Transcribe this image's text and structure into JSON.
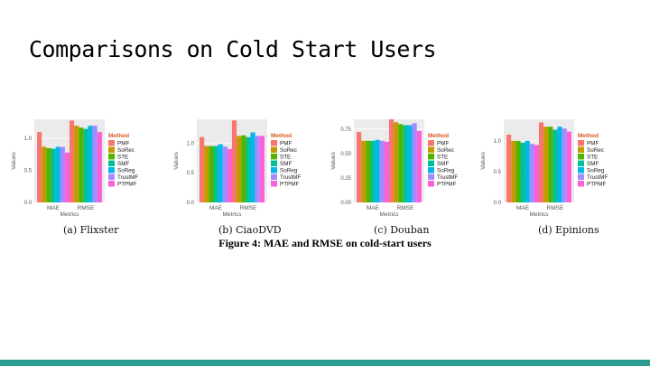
{
  "slide": {
    "title": "Comparisons on Cold Start Users",
    "figure_caption": "Figure 4: MAE and RMSE on cold-start users",
    "bottom_bar_color": "#2a9d8f"
  },
  "chart_common": {
    "legend_title": "Method",
    "methods": [
      "PMF",
      "SoRec",
      "STE",
      "SMF",
      "SoReg",
      "TrustMF",
      "PTPMF"
    ],
    "colors": [
      "#f8766d",
      "#c49a00",
      "#53b400",
      "#00c094",
      "#00b6eb",
      "#a58aff",
      "#fb61d7"
    ],
    "xlabel": "Metrics",
    "ylabel": "Values"
  },
  "chart_data": [
    {
      "type": "bar",
      "caption": "(a) Flixster",
      "categories": [
        "MAE",
        "RMSE"
      ],
      "ylim": [
        0,
        1.3
      ],
      "yticks": [
        0.0,
        0.5,
        1.0
      ],
      "ytick_labels": [
        "0.0",
        "0.5",
        "1.0"
      ],
      "legend": "right",
      "series": [
        {
          "name": "PMF",
          "values": [
            1.1,
            1.28
          ]
        },
        {
          "name": "SoRec",
          "values": [
            0.87,
            1.2
          ]
        },
        {
          "name": "STE",
          "values": [
            0.85,
            1.17
          ]
        },
        {
          "name": "SMF",
          "values": [
            0.84,
            1.15
          ]
        },
        {
          "name": "SoReg",
          "values": [
            0.87,
            1.2
          ]
        },
        {
          "name": "TrustMF",
          "values": [
            0.87,
            1.2
          ]
        },
        {
          "name": "PTPMF",
          "values": [
            0.78,
            1.1
          ]
        }
      ]
    },
    {
      "type": "bar",
      "caption": "(b) CiaoDVD",
      "categories": [
        "MAE",
        "RMSE"
      ],
      "ylim": [
        0,
        1.4
      ],
      "yticks": [
        0.0,
        0.5,
        1.0
      ],
      "ytick_labels": [
        "0.0",
        "0.5",
        "1.0"
      ],
      "legend": "right",
      "series": [
        {
          "name": "PMF",
          "values": [
            1.1,
            1.38
          ]
        },
        {
          "name": "SoRec",
          "values": [
            0.95,
            1.12
          ]
        },
        {
          "name": "STE",
          "values": [
            0.95,
            1.13
          ]
        },
        {
          "name": "SMF",
          "values": [
            0.95,
            1.1
          ]
        },
        {
          "name": "SoReg",
          "values": [
            0.98,
            1.18
          ]
        },
        {
          "name": "TrustMF",
          "values": [
            0.94,
            1.12
          ]
        },
        {
          "name": "PTPMF",
          "values": [
            0.9,
            1.12
          ]
        }
      ]
    },
    {
      "type": "bar",
      "caption": "(c) Douban",
      "categories": [
        "MAE",
        "RMSE"
      ],
      "ylim": [
        0,
        0.85
      ],
      "yticks": [
        0.0,
        0.25,
        0.5,
        0.75
      ],
      "ytick_labels": [
        "0.00",
        "0.25",
        "0.50",
        "0.75"
      ],
      "legend": "right",
      "series": [
        {
          "name": "PMF",
          "values": [
            0.72,
            0.85
          ]
        },
        {
          "name": "SoRec",
          "values": [
            0.63,
            0.82
          ]
        },
        {
          "name": "STE",
          "values": [
            0.63,
            0.8
          ]
        },
        {
          "name": "SMF",
          "values": [
            0.63,
            0.79
          ]
        },
        {
          "name": "SoReg",
          "values": [
            0.64,
            0.79
          ]
        },
        {
          "name": "TrustMF",
          "values": [
            0.63,
            0.81
          ]
        },
        {
          "name": "PTPMF",
          "values": [
            0.62,
            0.73
          ]
        }
      ]
    },
    {
      "type": "bar",
      "caption": "(d) Epinions",
      "categories": [
        "MAE",
        "RMSE"
      ],
      "ylim": [
        0,
        1.35
      ],
      "yticks": [
        0.0,
        0.5,
        1.0
      ],
      "ytick_labels": [
        "0.0",
        "0.5",
        "1.0"
      ],
      "legend": "right",
      "series": [
        {
          "name": "PMF",
          "values": [
            1.1,
            1.3
          ]
        },
        {
          "name": "SoRec",
          "values": [
            1.0,
            1.23
          ]
        },
        {
          "name": "STE",
          "values": [
            1.0,
            1.23
          ]
        },
        {
          "name": "SMF",
          "values": [
            0.97,
            1.18
          ]
        },
        {
          "name": "SoReg",
          "values": [
            1.0,
            1.23
          ]
        },
        {
          "name": "TrustMF",
          "values": [
            0.95,
            1.2
          ]
        },
        {
          "name": "PTPMF",
          "values": [
            0.93,
            1.15
          ]
        }
      ]
    }
  ]
}
